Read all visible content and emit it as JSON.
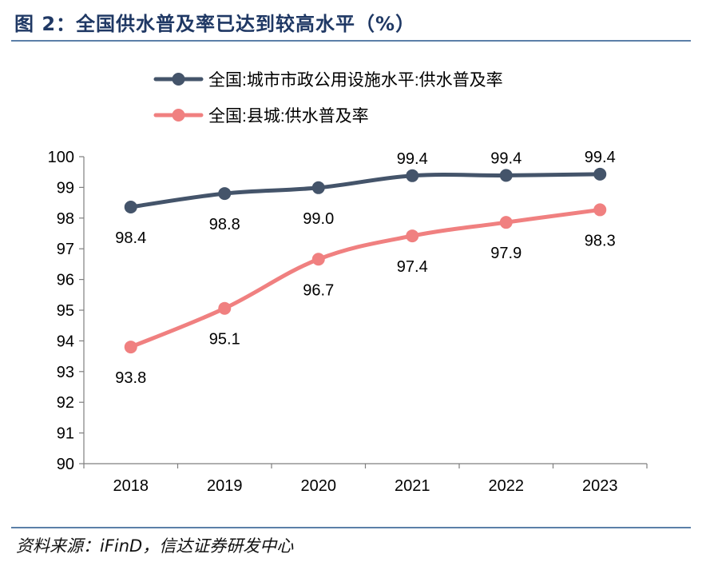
{
  "title": "图 2：全国供水普及率已达到较高水平（%）",
  "source": "资料来源：iFinD，信达证券研发中心",
  "chart_data": {
    "type": "line",
    "categories": [
      "2018",
      "2019",
      "2020",
      "2021",
      "2022",
      "2023"
    ],
    "ylim": [
      90,
      100
    ],
    "yticks": [
      "90",
      "91",
      "92",
      "93",
      "94",
      "95",
      "96",
      "97",
      "98",
      "99",
      "100"
    ],
    "grid": false,
    "legend_position": "top-right",
    "series": [
      {
        "name": "全国:城市市政公用设施水平:供水普及率",
        "color": "#44546a",
        "values": [
          98.36,
          98.8,
          98.99,
          99.38,
          99.39,
          99.43
        ],
        "labels": [
          "98.4",
          "98.8",
          "99.0",
          "99.4",
          "99.4",
          "99.4"
        ],
        "label_position": [
          "below",
          "below",
          "below",
          "above",
          "above",
          "above"
        ]
      },
      {
        "name": "全国:县城:供水普及率",
        "color": "#f08080",
        "values": [
          93.8,
          95.06,
          96.66,
          97.42,
          97.86,
          98.27
        ],
        "labels": [
          "93.8",
          "95.1",
          "96.7",
          "97.4",
          "97.9",
          "98.3"
        ],
        "label_position": [
          "below",
          "below",
          "below",
          "below",
          "below",
          "below"
        ]
      }
    ]
  }
}
